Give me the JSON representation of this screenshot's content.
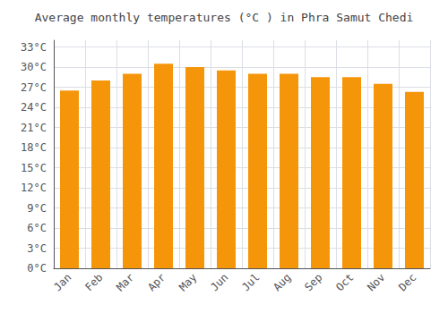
{
  "chart_data": {
    "type": "bar",
    "title": "Average monthly temperatures (°C ) in Phra Samut Chedi",
    "categories": [
      "Jan",
      "Feb",
      "Mar",
      "Apr",
      "May",
      "Jun",
      "Jul",
      "Aug",
      "Sep",
      "Oct",
      "Nov",
      "Dec"
    ],
    "values": [
      26.5,
      28.0,
      29.0,
      30.5,
      30.0,
      29.5,
      29.0,
      29.0,
      28.5,
      28.5,
      27.5,
      26.3
    ],
    "color": "#F5960A",
    "ylim": [
      0,
      34
    ],
    "yticks": [
      {
        "value": 0,
        "label": "0°C"
      },
      {
        "value": 3,
        "label": "3°C"
      },
      {
        "value": 6,
        "label": "6°C"
      },
      {
        "value": 9,
        "label": "9°C"
      },
      {
        "value": 12,
        "label": "12°C"
      },
      {
        "value": 15,
        "label": "15°C"
      },
      {
        "value": 18,
        "label": "18°C"
      },
      {
        "value": 21,
        "label": "21°C"
      },
      {
        "value": 24,
        "label": "24°C"
      },
      {
        "value": 27,
        "label": "27°C"
      },
      {
        "value": 30,
        "label": "30°C"
      },
      {
        "value": 33,
        "label": "33°C"
      }
    ],
    "grid": true
  }
}
